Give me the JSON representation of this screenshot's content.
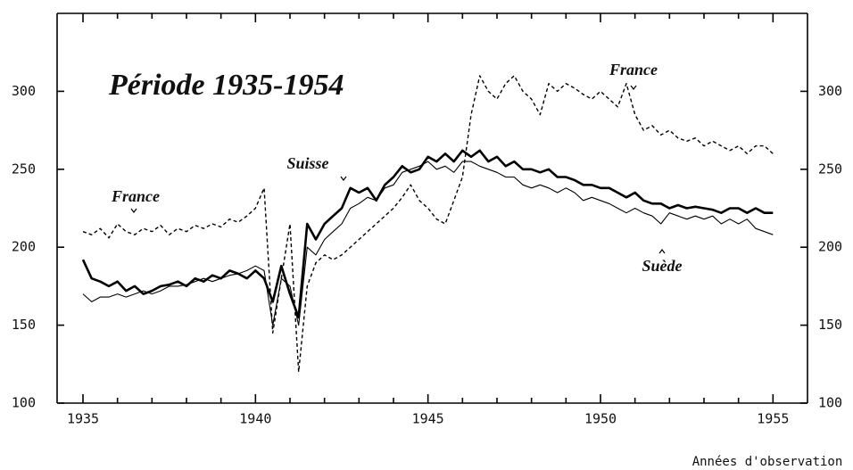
{
  "chart_data": {
    "type": "line",
    "title": "Période 1935-1954",
    "xlabel": "Années d'observation",
    "annotations": [
      "France",
      "France",
      "Suisse",
      "Suède"
    ],
    "x": [
      1935,
      1935.25,
      1935.5,
      1935.75,
      1936,
      1936.25,
      1936.5,
      1936.75,
      1937,
      1937.25,
      1937.5,
      1937.75,
      1938,
      1938.25,
      1938.5,
      1938.75,
      1939,
      1939.25,
      1939.5,
      1939.75,
      1940,
      1940.25,
      1940.5,
      1940.75,
      1941,
      1941.25,
      1941.5,
      1941.75,
      1942,
      1942.25,
      1942.5,
      1942.75,
      1943,
      1943.25,
      1943.5,
      1943.75,
      1944,
      1944.25,
      1944.5,
      1944.75,
      1945,
      1945.25,
      1945.5,
      1945.75,
      1946,
      1946.25,
      1946.5,
      1946.75,
      1947,
      1947.25,
      1947.5,
      1947.75,
      1948,
      1948.25,
      1948.5,
      1948.75,
      1949,
      1949.25,
      1949.5,
      1949.75,
      1950,
      1950.25,
      1950.5,
      1950.75,
      1951,
      1951.25,
      1951.5,
      1951.75,
      1952,
      1952.25,
      1952.5,
      1952.75,
      1953,
      1953.25,
      1953.5,
      1953.75,
      1954,
      1954.25,
      1954.5,
      1954.75,
      1955
    ],
    "series": [
      {
        "name": "France",
        "color": "#000000",
        "dash": true,
        "width": 1.4,
        "values": [
          210,
          208,
          212,
          206,
          215,
          210,
          208,
          212,
          210,
          214,
          208,
          212,
          210,
          214,
          212,
          215,
          213,
          218,
          216,
          220,
          225,
          238,
          145,
          180,
          215,
          120,
          175,
          190,
          195,
          192,
          195,
          200,
          205,
          210,
          215,
          220,
          225,
          232,
          240,
          230,
          225,
          218,
          215,
          230,
          245,
          285,
          310,
          300,
          295,
          305,
          310,
          300,
          295,
          285,
          305,
          300,
          305,
          302,
          298,
          295,
          300,
          295,
          290,
          305,
          285,
          275,
          278,
          272,
          275,
          270,
          268,
          270,
          265,
          268,
          265,
          262,
          265,
          260,
          265,
          265,
          260
        ]
      },
      {
        "name": "Suisse",
        "color": "#000000",
        "dash": false,
        "width": 2.6,
        "values": [
          192,
          180,
          178,
          175,
          178,
          172,
          175,
          170,
          172,
          175,
          176,
          178,
          175,
          180,
          178,
          182,
          180,
          185,
          183,
          180,
          185,
          180,
          165,
          188,
          170,
          155,
          215,
          205,
          215,
          220,
          225,
          238,
          235,
          238,
          230,
          240,
          245,
          252,
          248,
          250,
          258,
          255,
          260,
          255,
          262,
          258,
          262,
          255,
          258,
          252,
          255,
          250,
          250,
          248,
          250,
          245,
          245,
          243,
          240,
          240,
          238,
          238,
          235,
          232,
          235,
          230,
          228,
          228,
          225,
          227,
          225,
          226,
          225,
          224,
          222,
          225,
          225,
          222,
          225,
          222,
          222
        ]
      },
      {
        "name": "Suède",
        "color": "#000000",
        "dash": false,
        "width": 1.1,
        "values": [
          170,
          165,
          168,
          168,
          170,
          168,
          170,
          172,
          170,
          172,
          175,
          175,
          176,
          178,
          180,
          178,
          180,
          182,
          183,
          185,
          188,
          185,
          150,
          180,
          175,
          150,
          200,
          195,
          205,
          210,
          215,
          225,
          228,
          232,
          230,
          238,
          240,
          248,
          250,
          252,
          255,
          250,
          252,
          248,
          255,
          255,
          252,
          250,
          248,
          245,
          245,
          240,
          238,
          240,
          238,
          235,
          238,
          235,
          230,
          232,
          230,
          228,
          225,
          222,
          225,
          222,
          220,
          215,
          222,
          220,
          218,
          220,
          218,
          220,
          215,
          218,
          215,
          218,
          212,
          210,
          208
        ]
      }
    ],
    "xlim": [
      1934.25,
      1956
    ],
    "xticks": [
      1935,
      1940,
      1945,
      1950,
      1955
    ],
    "ylim": [
      100,
      350
    ],
    "yticks": [
      100,
      150,
      200,
      250,
      300
    ],
    "y2lim": [
      100,
      350
    ],
    "y2ticks": [
      100,
      150,
      200,
      250,
      300
    ]
  }
}
